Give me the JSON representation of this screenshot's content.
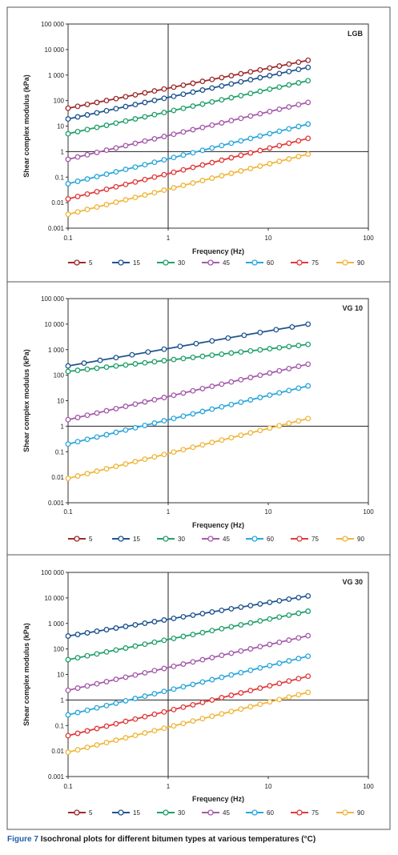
{
  "chart_data": [
    {
      "type": "line",
      "title": "LGB",
      "xlabel": "Frequency (Hz)",
      "ylabel": "Shear complex modulus (kPa)",
      "xscale": "log",
      "yscale": "log",
      "xlim": [
        0.1,
        100
      ],
      "ylim": [
        0.001,
        100000
      ],
      "xticks": [
        {
          "v": 0.1,
          "label": "0.1"
        },
        {
          "v": 1,
          "label": "1"
        },
        {
          "v": 10,
          "label": "10"
        },
        {
          "v": 100,
          "label": "100"
        }
      ],
      "yticks": [
        {
          "v": 0.001,
          "label": "0.001"
        },
        {
          "v": 0.01,
          "label": "0.01"
        },
        {
          "v": 0.1,
          "label": "0.1"
        },
        {
          "v": 1,
          "label": "1"
        },
        {
          "v": 10,
          "label": "10"
        },
        {
          "v": 100,
          "label": "100"
        },
        {
          "v": 1000,
          "label": "1 000"
        },
        {
          "v": 10000,
          "label": "10 000"
        },
        {
          "v": 100000,
          "label": "100 000"
        }
      ],
      "grid": "lines at x=1 and y=1",
      "legend": "bottom",
      "x_range": [
        0.1,
        25
      ],
      "points_per_series": 26,
      "series": [
        {
          "name": "5",
          "color": "#9e2a2b",
          "y_start": 50,
          "y_end": 3800
        },
        {
          "name": "15",
          "color": "#1f5590",
          "y_start": 19,
          "y_end": 2000
        },
        {
          "name": "30",
          "color": "#22a06b",
          "y_start": 5,
          "y_end": 600
        },
        {
          "name": "45",
          "color": "#a55aab",
          "y_start": 0.5,
          "y_end": 85
        },
        {
          "name": "60",
          "color": "#2aa7dc",
          "y_start": 0.055,
          "y_end": 12
        },
        {
          "name": "75",
          "color": "#e23a3a",
          "y_start": 0.014,
          "y_end": 3.3
        },
        {
          "name": "90",
          "color": "#f0b63c",
          "y_start": 0.0035,
          "y_end": 0.8
        }
      ]
    },
    {
      "type": "line",
      "title": "VG 10",
      "xlabel": "Frequency (Hz)",
      "ylabel": "Shear complex modulus (kPa)",
      "xscale": "log",
      "yscale": "log",
      "xlim": [
        0.1,
        100
      ],
      "ylim": [
        0.001,
        100000
      ],
      "xticks": [
        {
          "v": 0.1,
          "label": "0.1"
        },
        {
          "v": 1,
          "label": "1"
        },
        {
          "v": 10,
          "label": "10"
        },
        {
          "v": 100,
          "label": "100"
        }
      ],
      "yticks": [
        {
          "v": 0.001,
          "label": "0.001"
        },
        {
          "v": 0.01,
          "label": "0.01"
        },
        {
          "v": 0.1,
          "label": "0.1"
        },
        {
          "v": 1,
          "label": "1"
        },
        {
          "v": 10,
          "label": "10"
        },
        {
          "v": 100,
          "label": "100"
        },
        {
          "v": 1000,
          "label": "1 000"
        },
        {
          "v": 10000,
          "label": "10 000"
        },
        {
          "v": 100000,
          "label": "100 000"
        }
      ],
      "grid": "lines at x=1 and y=1",
      "legend": "bottom",
      "x_range": [
        0.1,
        25
      ],
      "series": [
        {
          "name": "5",
          "color": "#9e2a2b",
          "points": 0
        },
        {
          "name": "15",
          "color": "#1f5590",
          "y_start": 230,
          "y_end": 10000,
          "points": 16
        },
        {
          "name": "30",
          "color": "#22a06b",
          "y_start": 140,
          "y_end": 1600,
          "points": 26
        },
        {
          "name": "45",
          "color": "#a55aab",
          "y_start": 1.8,
          "y_end": 270,
          "points": 26
        },
        {
          "name": "60",
          "color": "#2aa7dc",
          "y_start": 0.2,
          "y_end": 38,
          "points": 26
        },
        {
          "name": "75",
          "color": "#e23a3a",
          "points": 0
        },
        {
          "name": "90",
          "color": "#f0b63c",
          "y_start": 0.009,
          "y_end": 2,
          "points": 26
        }
      ]
    },
    {
      "type": "line",
      "title": "VG 30",
      "xlabel": "Frequency (Hz)",
      "ylabel": "Shear complex modulus (kPa)",
      "xscale": "log",
      "yscale": "log",
      "xlim": [
        0.1,
        100
      ],
      "ylim": [
        0.001,
        100000
      ],
      "xticks": [
        {
          "v": 0.1,
          "label": "0.1"
        },
        {
          "v": 1,
          "label": "1"
        },
        {
          "v": 10,
          "label": "10"
        },
        {
          "v": 100,
          "label": "100"
        }
      ],
      "yticks": [
        {
          "v": 0.001,
          "label": "0.001"
        },
        {
          "v": 0.01,
          "label": "0.01"
        },
        {
          "v": 0.1,
          "label": "0.1"
        },
        {
          "v": 1,
          "label": "1"
        },
        {
          "v": 10,
          "label": "10"
        },
        {
          "v": 100,
          "label": "100"
        },
        {
          "v": 1000,
          "label": "1 000"
        },
        {
          "v": 10000,
          "label": "10 000"
        },
        {
          "v": 100000,
          "label": "100 000"
        }
      ],
      "grid": "lines at x=1 and y=1",
      "legend": "bottom",
      "x_range": [
        0.1,
        25
      ],
      "points_per_series": 26,
      "series": [
        {
          "name": "5",
          "color": "#9e2a2b",
          "points": 0
        },
        {
          "name": "15",
          "color": "#1f5590",
          "y_start": 320,
          "y_end": 12000
        },
        {
          "name": "30",
          "color": "#22a06b",
          "y_start": 38,
          "y_end": 3000
        },
        {
          "name": "45",
          "color": "#a55aab",
          "y_start": 2.4,
          "y_end": 330
        },
        {
          "name": "60",
          "color": "#2aa7dc",
          "y_start": 0.26,
          "y_end": 52
        },
        {
          "name": "75",
          "color": "#e23a3a",
          "y_start": 0.04,
          "y_end": 8.5
        },
        {
          "name": "90",
          "color": "#f0b63c",
          "y_start": 0.009,
          "y_end": 2
        }
      ]
    }
  ],
  "caption": {
    "label": "Figure 7",
    "text": "Isochronal plots for different bitumen types at various temperatures (°C)"
  }
}
